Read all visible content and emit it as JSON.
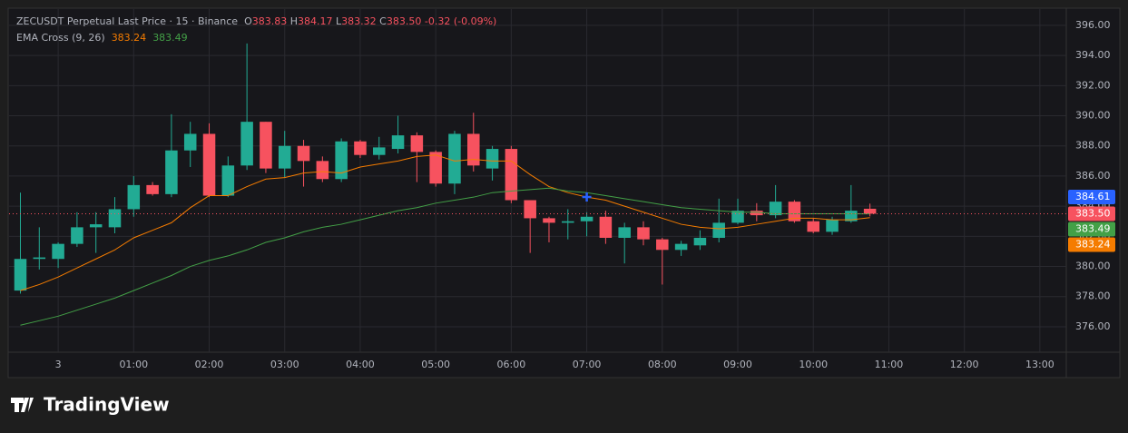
{
  "header": {
    "symbol": "ZECUSDT Perpetual Last Price · 15 · Binance",
    "ohlc": [
      {
        "key": "O",
        "value": "383.83"
      },
      {
        "key": "H",
        "value": "384.17"
      },
      {
        "key": "L",
        "value": "383.32"
      },
      {
        "key": "C",
        "value": "383.50"
      }
    ],
    "change": "-0.32 (-0.09%)",
    "indicator": "EMA Cross (9, 26)",
    "indicator_values": [
      "383.24",
      "383.49"
    ]
  },
  "logo": "TradingView",
  "chart_data": {
    "type": "candlestick",
    "x": [
      -0.5,
      -0.25,
      0,
      0.25,
      0.5,
      0.75,
      1,
      1.25,
      1.5,
      1.75,
      2,
      2.25,
      2.5,
      2.75,
      3,
      3.25,
      3.5,
      3.75,
      4,
      4.25,
      4.5,
      4.75,
      5,
      5.25,
      5.5,
      5.75,
      6,
      6.25,
      6.5,
      6.75,
      7,
      7.25,
      7.5,
      7.75,
      8,
      8.25,
      8.5,
      8.75,
      9,
      9.25,
      9.5,
      9.75,
      10,
      10.25,
      10.5,
      10.75
    ],
    "open": [
      378.4,
      380.5,
      380.5,
      381.5,
      382.6,
      382.6,
      383.8,
      385.4,
      384.8,
      387.7,
      388.8,
      384.7,
      386.7,
      389.6,
      386.5,
      388.0,
      387.0,
      385.8,
      388.3,
      387.4,
      387.8,
      388.7,
      387.6,
      385.5,
      388.8,
      386.5,
      387.8,
      384.4,
      383.2,
      382.9,
      383.0,
      383.3,
      381.9,
      382.6,
      381.8,
      381.1,
      381.4,
      381.9,
      382.9,
      383.7,
      383.4,
      384.3,
      383.0,
      382.3,
      383.0,
      383.83
    ],
    "high": [
      384.9,
      382.6,
      381.6,
      383.6,
      383.6,
      384.6,
      386.0,
      385.6,
      390.1,
      389.6,
      389.5,
      387.3,
      394.8,
      389.6,
      389.0,
      388.4,
      387.3,
      388.5,
      388.4,
      388.6,
      390.0,
      388.9,
      387.7,
      389.0,
      390.2,
      388.0,
      388.0,
      384.4,
      383.3,
      383.8,
      383.6,
      383.7,
      382.9,
      383.0,
      381.9,
      381.7,
      382.4,
      384.5,
      384.5,
      384.2,
      385.4,
      384.4,
      383.2,
      383.3,
      385.4,
      384.17
    ],
    "low": [
      378.2,
      379.8,
      379.9,
      381.3,
      380.9,
      382.2,
      383.3,
      384.7,
      384.6,
      386.6,
      384.6,
      384.6,
      386.4,
      386.2,
      385.9,
      385.3,
      385.6,
      385.6,
      387.2,
      387.1,
      387.5,
      385.6,
      385.3,
      384.8,
      386.3,
      385.7,
      384.2,
      380.9,
      381.6,
      381.8,
      382.0,
      381.5,
      380.2,
      381.4,
      378.8,
      380.7,
      381.1,
      381.6,
      382.8,
      383.0,
      383.2,
      382.9,
      382.2,
      382.1,
      382.9,
      383.32
    ],
    "close": [
      380.5,
      380.6,
      381.5,
      382.6,
      382.8,
      383.8,
      385.4,
      384.8,
      387.7,
      388.8,
      384.7,
      386.7,
      389.6,
      386.5,
      388.0,
      387.0,
      385.8,
      388.3,
      387.4,
      387.9,
      388.7,
      387.6,
      385.5,
      388.8,
      386.7,
      387.8,
      384.4,
      383.2,
      382.9,
      383.0,
      383.3,
      381.9,
      382.6,
      381.8,
      381.1,
      381.5,
      381.9,
      382.9,
      383.7,
      383.4,
      384.3,
      383.0,
      382.3,
      383.1,
      383.7,
      383.5
    ],
    "up_color": "#22ab94",
    "down_color": "#f7525f",
    "lines": [
      {
        "color": "#f57c00",
        "values": [
          378.4,
          378.8,
          379.3,
          379.9,
          380.5,
          381.1,
          381.9,
          382.4,
          382.9,
          383.9,
          384.7,
          384.7,
          385.3,
          385.8,
          385.9,
          386.2,
          386.3,
          386.2,
          386.6,
          386.8,
          387.0,
          387.3,
          387.4,
          387.0,
          387.1,
          387.0,
          387.0,
          386.1,
          385.3,
          384.9,
          384.6,
          384.4,
          384.0,
          383.6,
          383.2,
          382.8,
          382.6,
          382.5,
          382.6,
          382.8,
          383.0,
          383.2,
          383.2,
          383.1,
          383.1,
          383.24
        ]
      },
      {
        "color": "#43a047",
        "values": [
          376.1,
          376.4,
          376.7,
          377.1,
          377.5,
          377.9,
          378.4,
          378.9,
          379.4,
          380.0,
          380.4,
          380.7,
          381.1,
          381.6,
          381.9,
          382.3,
          382.6,
          382.8,
          383.1,
          383.4,
          383.7,
          383.9,
          384.2,
          384.4,
          384.6,
          384.9,
          385.0,
          385.1,
          385.2,
          385.0,
          384.9,
          384.7,
          384.5,
          384.3,
          384.1,
          383.9,
          383.8,
          383.7,
          383.6,
          383.6,
          383.5,
          383.5,
          383.5,
          383.5,
          383.5,
          383.49
        ]
      }
    ],
    "xlim": [
      -0.65,
      13.35
    ],
    "xticks": [
      {
        "value": 0,
        "label": "3"
      },
      {
        "value": 1,
        "label": "01:00"
      },
      {
        "value": 2,
        "label": "02:00"
      },
      {
        "value": 3,
        "label": "03:00"
      },
      {
        "value": 4,
        "label": "04:00"
      },
      {
        "value": 5,
        "label": "05:00"
      },
      {
        "value": 6,
        "label": "06:00"
      },
      {
        "value": 7,
        "label": "07:00"
      },
      {
        "value": 8,
        "label": "08:00"
      },
      {
        "value": 9,
        "label": "09:00"
      },
      {
        "value": 10,
        "label": "10:00"
      },
      {
        "value": 11,
        "label": "11:00"
      },
      {
        "value": 12,
        "label": "12:00"
      },
      {
        "value": 13,
        "label": "13:00"
      }
    ],
    "ylim": [
      374.31,
      397.08
    ],
    "yticks": [
      {
        "value": 376,
        "label": "376.00"
      },
      {
        "value": 378,
        "label": "378.00"
      },
      {
        "value": 380,
        "label": "380.00"
      },
      {
        "value": 382,
        "label": "382.00"
      },
      {
        "value": 384,
        "label": "384.00"
      },
      {
        "value": 386,
        "label": "386.00"
      },
      {
        "value": 388,
        "label": "388.00"
      },
      {
        "value": 390,
        "label": "390.00"
      },
      {
        "value": 392,
        "label": "392.00"
      },
      {
        "value": 394,
        "label": "394.00"
      },
      {
        "value": 396,
        "label": "396.00"
      }
    ],
    "grid": true,
    "price_labels": [
      {
        "value": 384.61,
        "label": "384.61",
        "color": "#2962ff"
      },
      {
        "value": 383.5,
        "label": "383.50",
        "color": "#f7525f"
      },
      {
        "value": 383.49,
        "label": "383.49",
        "color": "#43a047"
      },
      {
        "value": 383.24,
        "label": "383.24",
        "color": "#f57c00"
      }
    ],
    "crosshair_x": 7
  }
}
